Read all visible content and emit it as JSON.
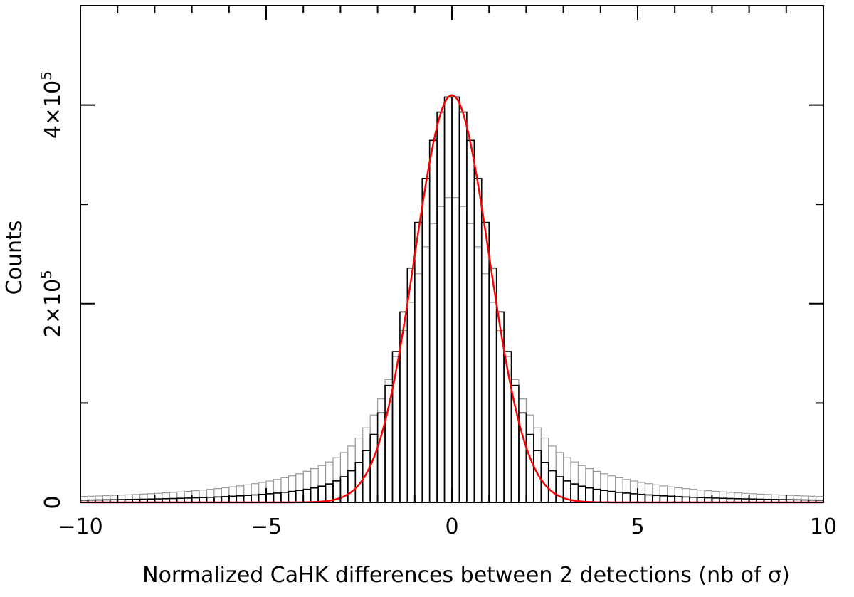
{
  "chart_data": {
    "type": "bar",
    "xlabel": "Normalized CaHK differences between 2 detections (nb of σ)",
    "ylabel": "Counts",
    "xlim": [
      -10,
      10
    ],
    "ylim": [
      0,
      500000
    ],
    "x_ticks": [
      -10,
      -5,
      0,
      5,
      10
    ],
    "x_tick_labels": [
      "−10",
      "−5",
      "0",
      "5",
      "10"
    ],
    "y_ticks": [
      {
        "value": 0,
        "base": "0",
        "exp": ""
      },
      {
        "value": 200000,
        "base": "2×10",
        "exp": "5"
      },
      {
        "value": 400000,
        "base": "4×10",
        "exp": "5"
      }
    ],
    "bin_width": 0.2,
    "series": [
      {
        "style": "histogram",
        "color": "#000000",
        "peak": 410000,
        "peak_location": 0,
        "core_sigma": 1.0,
        "core_fraction": 0.78,
        "wing_scale": 1.6
      },
      {
        "style": "histogram",
        "color": "#9a9a9a",
        "peak": 308000,
        "peak_location": 0,
        "core_sigma": 1.0,
        "core_fraction": 0.55,
        "wing_scale": 2.1
      },
      {
        "style": "gaussian-fit",
        "color": "#ff0000",
        "amplitude": 410000,
        "mean": 0,
        "sigma": 1.0
      }
    ],
    "grid": false,
    "legend": "none"
  }
}
